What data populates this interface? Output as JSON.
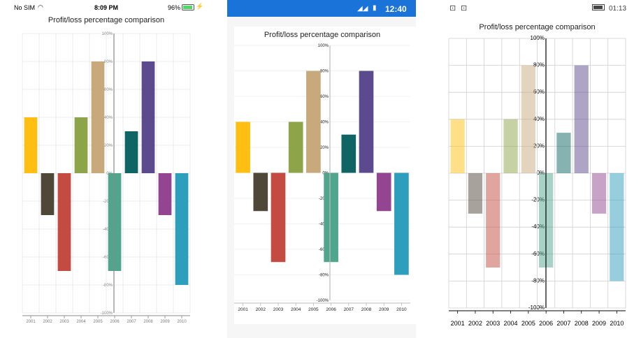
{
  "ios_status": {
    "carrier": "No SIM",
    "time": "8:09 PM",
    "battery": "96%"
  },
  "android_status": {
    "time": "12:40"
  },
  "windows_status": {
    "time": "01:13"
  },
  "chart_data": {
    "type": "bar",
    "title": "Profit/loss percentage comparison",
    "categories": [
      "2001",
      "2002",
      "2003",
      "2004",
      "2005",
      "2006",
      "2007",
      "2008",
      "2009",
      "2010"
    ],
    "values": [
      40,
      -30,
      -70,
      40,
      80,
      -70,
      30,
      80,
      -30,
      -80
    ],
    "colors": [
      "#FFBF12",
      "#4F4839",
      "#C34B41",
      "#8DA449",
      "#C7A97C",
      "#4FA68C",
      "#0E6563",
      "#5C4A8E",
      "#934592",
      "#2D9EBC"
    ],
    "ylim": [
      -100,
      100
    ],
    "y_ticks": [
      "-100%",
      "-80%",
      "-60%",
      "-40%",
      "-20%",
      "0%",
      "20%",
      "40%",
      "60%",
      "80%",
      "100%"
    ],
    "grid": true,
    "legend": "none"
  }
}
